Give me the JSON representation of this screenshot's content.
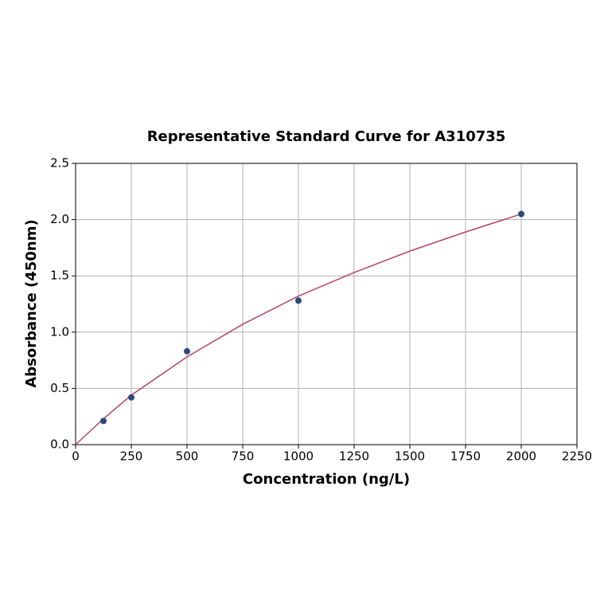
{
  "chart_data": {
    "type": "scatter",
    "title": "Representative Standard Curve for A310735",
    "xlabel": "Concentration (ng/L)",
    "ylabel": "Absorbance (450nm)",
    "xlim": [
      0,
      2250
    ],
    "ylim": [
      0,
      2.5
    ],
    "xticks": [
      0,
      250,
      500,
      750,
      1000,
      1250,
      1500,
      1750,
      2000,
      2250
    ],
    "yticks": [
      {
        "value": 0,
        "label": "0.0"
      },
      {
        "value": 0.5,
        "label": "0.5"
      },
      {
        "value": 1,
        "label": "1.0"
      },
      {
        "value": 1.5,
        "label": "1.5"
      },
      {
        "value": 2,
        "label": "2.0"
      },
      {
        "value": 2.5,
        "label": "2.5"
      }
    ],
    "grid": true,
    "series": [
      {
        "mode": "line",
        "color": "#b5446b",
        "x": [
          0,
          125,
          250,
          500,
          750,
          1000,
          1250,
          1500,
          1750,
          2000
        ],
        "values": [
          0,
          0.23,
          0.44,
          0.78,
          1.07,
          1.32,
          1.53,
          1.72,
          1.89,
          2.05
        ]
      },
      {
        "mode": "markers",
        "color": "#2e4a7a",
        "x": [
          125,
          250,
          500,
          1000,
          2000
        ],
        "values": [
          0.21,
          0.42,
          0.83,
          1.28,
          2.05
        ]
      }
    ]
  }
}
